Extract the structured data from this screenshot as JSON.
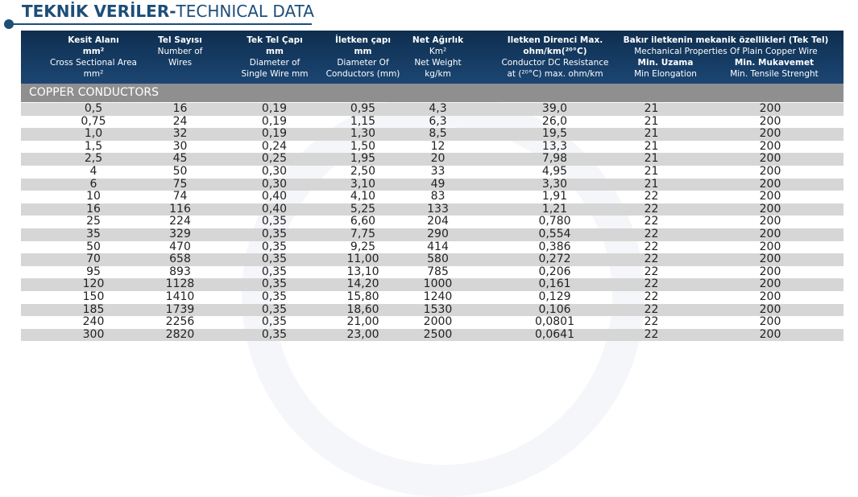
{
  "title": {
    "bold": "TEKNİK VERİLER-",
    "normal": "TECHNICAL DATA"
  },
  "headers": [
    {
      "lines": [
        "Kesit Alanı",
        "mm²",
        "Cross Sectional Area",
        "mm²"
      ],
      "bold": [
        true,
        true,
        false,
        false
      ]
    },
    {
      "lines": [
        "Tel Sayısı",
        "",
        "Number of",
        "Wires"
      ],
      "bold": [
        true,
        false,
        false,
        false
      ]
    },
    {
      "lines": [
        "Tek Tel Çapı",
        "mm",
        "Diameter of",
        "Single Wire mm"
      ],
      "bold": [
        true,
        true,
        false,
        false
      ]
    },
    {
      "lines": [
        "İletken çapı",
        "mm",
        "Diameter Of",
        "Conductors (mm)"
      ],
      "bold": [
        true,
        true,
        false,
        false
      ]
    },
    {
      "lines": [
        "Net Ağırlık",
        "Km²",
        "Net Weight",
        "kg/km"
      ],
      "bold": [
        true,
        false,
        false,
        false
      ]
    },
    {
      "lines": [
        "Iletken Direnci Max.",
        "ohm/km(²⁰°C)",
        "Conductor DC Resistance",
        "at (²⁰°C) max. ohm/km"
      ],
      "bold": [
        true,
        true,
        false,
        false
      ]
    }
  ],
  "mechanical_header": {
    "line1": "Bakır iletkenin mekanik özellikleri (Tek Tel)",
    "line2": "Mechanical Properties Of Plain Copper Wire",
    "elong_bold": "Min. Uzama",
    "elong": "Min Elongation",
    "tensile_bold": "Min. Mukavemet",
    "tensile": "Min. Tensile Strenght"
  },
  "section_label": "COPPER CONDUCTORS",
  "rows": [
    [
      "0,5",
      "16",
      "0,19",
      "0,95",
      "4,3",
      "39,0",
      "21",
      "200"
    ],
    [
      "0,75",
      "24",
      "0,19",
      "1,15",
      "6,3",
      "26,0",
      "21",
      "200"
    ],
    [
      "1,0",
      "32",
      "0,19",
      "1,30",
      "8,5",
      "19,5",
      "21",
      "200"
    ],
    [
      "1,5",
      "30",
      "0,24",
      "1,50",
      "12",
      "13,3",
      "21",
      "200"
    ],
    [
      "2,5",
      "45",
      "0,25",
      "1,95",
      "20",
      "7,98",
      "21",
      "200"
    ],
    [
      "4",
      "50",
      "0,30",
      "2,50",
      "33",
      "4,95",
      "21",
      "200"
    ],
    [
      "6",
      "75",
      "0,30",
      "3,10",
      "49",
      "3,30",
      "21",
      "200"
    ],
    [
      "10",
      "74",
      "0,40",
      "4,10",
      "83",
      "1,91",
      "22",
      "200"
    ],
    [
      "16",
      "116",
      "0,40",
      "5,25",
      "133",
      "1,21",
      "22",
      "200"
    ],
    [
      "25",
      "224",
      "0,35",
      "6,60",
      "204",
      "0,780",
      "22",
      "200"
    ],
    [
      "35",
      "329",
      "0,35",
      "7,75",
      "290",
      "0,554",
      "22",
      "200"
    ],
    [
      "50",
      "470",
      "0,35",
      "9,25",
      "414",
      "0,386",
      "22",
      "200"
    ],
    [
      "70",
      "658",
      "0,35",
      "11,00",
      "580",
      "0,272",
      "22",
      "200"
    ],
    [
      "95",
      "893",
      "0,35",
      "13,10",
      "785",
      "0,206",
      "22",
      "200"
    ],
    [
      "120",
      "1128",
      "0,35",
      "14,20",
      "1000",
      "0,161",
      "22",
      "200"
    ],
    [
      "150",
      "1410",
      "0,35",
      "15,80",
      "1240",
      "0,129",
      "22",
      "200"
    ],
    [
      "185",
      "1739",
      "0,35",
      "18,60",
      "1530",
      "0,106",
      "22",
      "200"
    ],
    [
      "240",
      "2256",
      "0,35",
      "21,00",
      "2000",
      "0,0801",
      "22",
      "200"
    ],
    [
      "300",
      "2820",
      "0,35",
      "23,00",
      "2500",
      "0,0641",
      "22",
      "200"
    ]
  ]
}
